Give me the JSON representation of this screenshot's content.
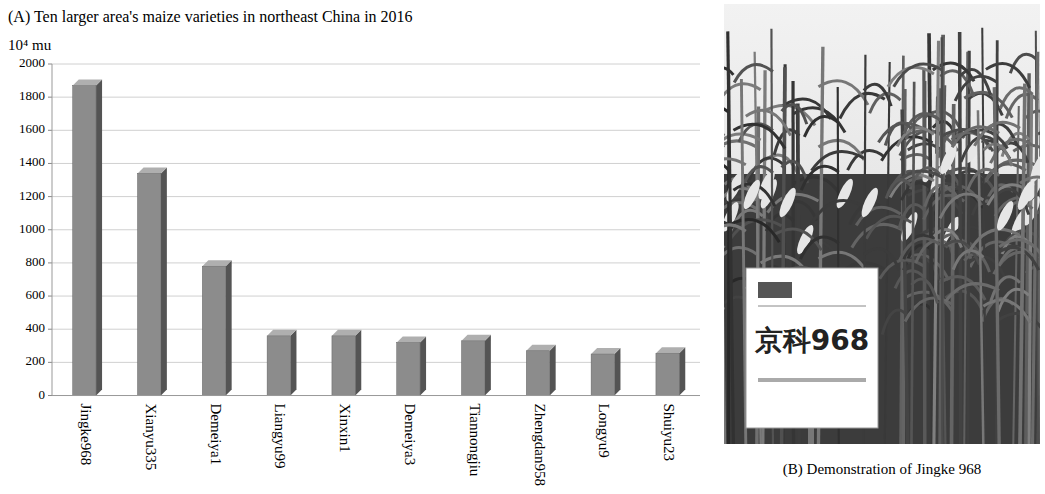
{
  "chart_data": {
    "type": "bar",
    "title": "(A) Ten larger area's maize varieties in northeast China in 2016",
    "ylabel": "10⁴ mu",
    "categories": [
      "Jingke968",
      "Xianyu335",
      "Demeiya1",
      "Liangyu99",
      "Xinxin1",
      "Demeiya3",
      "Tiannongjiu",
      "Zhengdan958",
      "Longyu9",
      "Shuiyu23"
    ],
    "values": [
      1870,
      1340,
      780,
      360,
      360,
      320,
      330,
      270,
      250,
      255
    ],
    "color": "#8c8c8c",
    "ylim": [
      0,
      2000
    ],
    "yticks": [
      0,
      200,
      400,
      600,
      800,
      1000,
      1200,
      1400,
      1600,
      1800,
      2000
    ],
    "grid": true
  },
  "photo": {
    "caption": "(B) Demonstration of Jingke 968",
    "sign_text": "京科968"
  }
}
